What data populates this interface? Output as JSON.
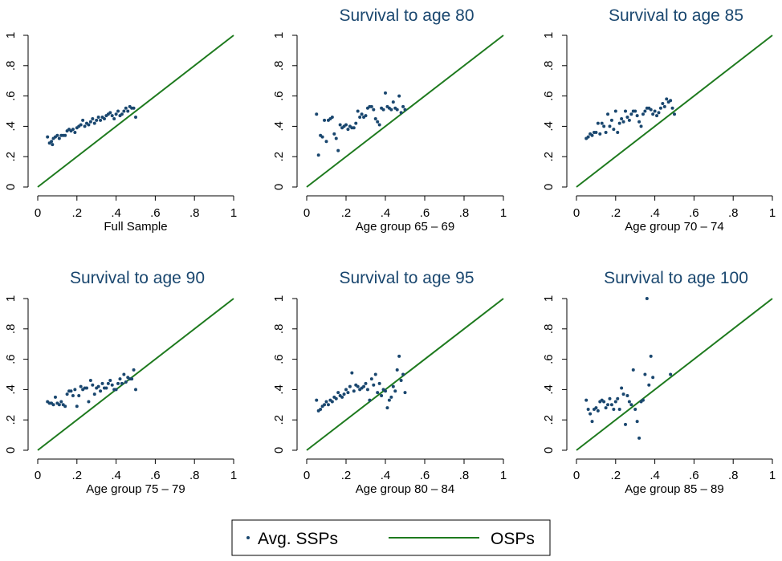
{
  "legend": {
    "scatter_label": "Avg. SSPs",
    "line_label": "OSPs"
  },
  "colors": {
    "scatter": "#1a476f",
    "line": "#1e7a1e",
    "title": "#1a476f"
  },
  "axis_ticks": [
    "0",
    ".2",
    ".4",
    ".6",
    ".8",
    "1"
  ],
  "chart_data": [
    {
      "type": "scatter",
      "title": "",
      "xlabel": "Full Sample",
      "ylabel": "",
      "xlim": [
        0,
        1
      ],
      "ylim": [
        0,
        1
      ],
      "grid": false,
      "line": {
        "x": [
          0,
          1
        ],
        "y": [
          0,
          1
        ]
      },
      "points": [
        [
          0.05,
          0.33
        ],
        [
          0.06,
          0.29
        ],
        [
          0.07,
          0.3
        ],
        [
          0.075,
          0.28
        ],
        [
          0.08,
          0.32
        ],
        [
          0.09,
          0.33
        ],
        [
          0.1,
          0.34
        ],
        [
          0.11,
          0.32
        ],
        [
          0.12,
          0.34
        ],
        [
          0.13,
          0.34
        ],
        [
          0.14,
          0.34
        ],
        [
          0.15,
          0.37
        ],
        [
          0.16,
          0.38
        ],
        [
          0.17,
          0.37
        ],
        [
          0.18,
          0.38
        ],
        [
          0.19,
          0.36
        ],
        [
          0.2,
          0.39
        ],
        [
          0.21,
          0.4
        ],
        [
          0.22,
          0.41
        ],
        [
          0.23,
          0.44
        ],
        [
          0.24,
          0.4
        ],
        [
          0.25,
          0.42
        ],
        [
          0.26,
          0.41
        ],
        [
          0.27,
          0.43
        ],
        [
          0.28,
          0.45
        ],
        [
          0.29,
          0.42
        ],
        [
          0.3,
          0.44
        ],
        [
          0.31,
          0.46
        ],
        [
          0.32,
          0.44
        ],
        [
          0.33,
          0.46
        ],
        [
          0.34,
          0.45
        ],
        [
          0.35,
          0.47
        ],
        [
          0.36,
          0.48
        ],
        [
          0.37,
          0.49
        ],
        [
          0.38,
          0.47
        ],
        [
          0.39,
          0.45
        ],
        [
          0.4,
          0.48
        ],
        [
          0.41,
          0.5
        ],
        [
          0.42,
          0.47
        ],
        [
          0.43,
          0.48
        ],
        [
          0.44,
          0.5
        ],
        [
          0.45,
          0.52
        ],
        [
          0.46,
          0.5
        ],
        [
          0.47,
          0.53
        ],
        [
          0.48,
          0.52
        ],
        [
          0.49,
          0.52
        ],
        [
          0.5,
          0.46
        ]
      ]
    },
    {
      "type": "scatter",
      "title": "Survival to age 80",
      "xlabel": "Age group 65 – 69",
      "ylabel": "",
      "xlim": [
        0,
        1
      ],
      "ylim": [
        0,
        1
      ],
      "grid": false,
      "line": {
        "x": [
          0,
          1
        ],
        "y": [
          0,
          1
        ]
      },
      "points": [
        [
          0.05,
          0.48
        ],
        [
          0.06,
          0.21
        ],
        [
          0.07,
          0.34
        ],
        [
          0.08,
          0.33
        ],
        [
          0.09,
          0.44
        ],
        [
          0.1,
          0.3
        ],
        [
          0.11,
          0.44
        ],
        [
          0.12,
          0.45
        ],
        [
          0.13,
          0.46
        ],
        [
          0.14,
          0.35
        ],
        [
          0.15,
          0.32
        ],
        [
          0.16,
          0.24
        ],
        [
          0.17,
          0.41
        ],
        [
          0.18,
          0.39
        ],
        [
          0.19,
          0.4
        ],
        [
          0.2,
          0.41
        ],
        [
          0.21,
          0.38
        ],
        [
          0.22,
          0.4
        ],
        [
          0.23,
          0.39
        ],
        [
          0.24,
          0.39
        ],
        [
          0.25,
          0.42
        ],
        [
          0.26,
          0.5
        ],
        [
          0.27,
          0.46
        ],
        [
          0.28,
          0.48
        ],
        [
          0.29,
          0.46
        ],
        [
          0.3,
          0.47
        ],
        [
          0.31,
          0.52
        ],
        [
          0.32,
          0.53
        ],
        [
          0.33,
          0.53
        ],
        [
          0.34,
          0.51
        ],
        [
          0.35,
          0.45
        ],
        [
          0.36,
          0.43
        ],
        [
          0.37,
          0.41
        ],
        [
          0.38,
          0.52
        ],
        [
          0.39,
          0.51
        ],
        [
          0.4,
          0.62
        ],
        [
          0.41,
          0.53
        ],
        [
          0.42,
          0.52
        ],
        [
          0.43,
          0.51
        ],
        [
          0.44,
          0.56
        ],
        [
          0.45,
          0.52
        ],
        [
          0.46,
          0.51
        ],
        [
          0.47,
          0.6
        ],
        [
          0.48,
          0.49
        ],
        [
          0.49,
          0.53
        ],
        [
          0.5,
          0.51
        ]
      ]
    },
    {
      "type": "scatter",
      "title": "Survival to age 85",
      "xlabel": "Age group 70 – 74",
      "ylabel": "",
      "xlim": [
        0,
        1
      ],
      "ylim": [
        0,
        1
      ],
      "grid": false,
      "line": {
        "x": [
          0,
          1
        ],
        "y": [
          0,
          1
        ]
      },
      "points": [
        [
          0.05,
          0.32
        ],
        [
          0.06,
          0.33
        ],
        [
          0.07,
          0.35
        ],
        [
          0.08,
          0.34
        ],
        [
          0.09,
          0.36
        ],
        [
          0.1,
          0.36
        ],
        [
          0.11,
          0.42
        ],
        [
          0.12,
          0.35
        ],
        [
          0.13,
          0.42
        ],
        [
          0.14,
          0.4
        ],
        [
          0.15,
          0.36
        ],
        [
          0.16,
          0.48
        ],
        [
          0.17,
          0.4
        ],
        [
          0.18,
          0.44
        ],
        [
          0.19,
          0.38
        ],
        [
          0.2,
          0.5
        ],
        [
          0.21,
          0.36
        ],
        [
          0.22,
          0.42
        ],
        [
          0.23,
          0.45
        ],
        [
          0.24,
          0.43
        ],
        [
          0.25,
          0.5
        ],
        [
          0.26,
          0.46
        ],
        [
          0.27,
          0.44
        ],
        [
          0.28,
          0.48
        ],
        [
          0.29,
          0.5
        ],
        [
          0.3,
          0.5
        ],
        [
          0.31,
          0.47
        ],
        [
          0.32,
          0.43
        ],
        [
          0.33,
          0.4
        ],
        [
          0.34,
          0.48
        ],
        [
          0.35,
          0.5
        ],
        [
          0.36,
          0.52
        ],
        [
          0.37,
          0.52
        ],
        [
          0.38,
          0.51
        ],
        [
          0.39,
          0.48
        ],
        [
          0.4,
          0.5
        ],
        [
          0.41,
          0.47
        ],
        [
          0.42,
          0.49
        ],
        [
          0.43,
          0.52
        ],
        [
          0.44,
          0.55
        ],
        [
          0.45,
          0.53
        ],
        [
          0.46,
          0.58
        ],
        [
          0.47,
          0.56
        ],
        [
          0.48,
          0.57
        ],
        [
          0.49,
          0.52
        ],
        [
          0.5,
          0.48
        ]
      ]
    },
    {
      "type": "scatter",
      "title": "Survival to age 90",
      "xlabel": "Age group 75 – 79",
      "ylabel": "",
      "xlim": [
        0,
        1
      ],
      "ylim": [
        0,
        1
      ],
      "grid": false,
      "line": {
        "x": [
          0,
          1
        ],
        "y": [
          0,
          1
        ]
      },
      "points": [
        [
          0.05,
          0.32
        ],
        [
          0.06,
          0.31
        ],
        [
          0.07,
          0.31
        ],
        [
          0.08,
          0.3
        ],
        [
          0.09,
          0.35
        ],
        [
          0.1,
          0.31
        ],
        [
          0.11,
          0.3
        ],
        [
          0.12,
          0.32
        ],
        [
          0.13,
          0.3
        ],
        [
          0.14,
          0.29
        ],
        [
          0.15,
          0.37
        ],
        [
          0.16,
          0.39
        ],
        [
          0.17,
          0.39
        ],
        [
          0.18,
          0.36
        ],
        [
          0.19,
          0.4
        ],
        [
          0.2,
          0.29
        ],
        [
          0.21,
          0.36
        ],
        [
          0.22,
          0.42
        ],
        [
          0.23,
          0.4
        ],
        [
          0.24,
          0.41
        ],
        [
          0.25,
          0.41
        ],
        [
          0.26,
          0.32
        ],
        [
          0.27,
          0.46
        ],
        [
          0.28,
          0.43
        ],
        [
          0.29,
          0.37
        ],
        [
          0.3,
          0.41
        ],
        [
          0.31,
          0.42
        ],
        [
          0.32,
          0.39
        ],
        [
          0.33,
          0.44
        ],
        [
          0.34,
          0.41
        ],
        [
          0.35,
          0.41
        ],
        [
          0.36,
          0.44
        ],
        [
          0.37,
          0.46
        ],
        [
          0.38,
          0.43
        ],
        [
          0.39,
          0.4
        ],
        [
          0.4,
          0.4
        ],
        [
          0.41,
          0.44
        ],
        [
          0.42,
          0.47
        ],
        [
          0.43,
          0.44
        ],
        [
          0.44,
          0.5
        ],
        [
          0.45,
          0.45
        ],
        [
          0.46,
          0.48
        ],
        [
          0.47,
          0.47
        ],
        [
          0.48,
          0.47
        ],
        [
          0.49,
          0.53
        ],
        [
          0.5,
          0.4
        ]
      ]
    },
    {
      "type": "scatter",
      "title": "Survival to age 95",
      "xlabel": "Age group 80 – 84",
      "ylabel": "",
      "xlim": [
        0,
        1
      ],
      "ylim": [
        0,
        1
      ],
      "grid": false,
      "line": {
        "x": [
          0,
          1
        ],
        "y": [
          0,
          1
        ]
      },
      "points": [
        [
          0.05,
          0.33
        ],
        [
          0.06,
          0.26
        ],
        [
          0.07,
          0.27
        ],
        [
          0.08,
          0.29
        ],
        [
          0.09,
          0.3
        ],
        [
          0.1,
          0.32
        ],
        [
          0.11,
          0.3
        ],
        [
          0.12,
          0.33
        ],
        [
          0.13,
          0.32
        ],
        [
          0.14,
          0.35
        ],
        [
          0.15,
          0.34
        ],
        [
          0.16,
          0.38
        ],
        [
          0.17,
          0.36
        ],
        [
          0.18,
          0.35
        ],
        [
          0.19,
          0.37
        ],
        [
          0.2,
          0.4
        ],
        [
          0.21,
          0.38
        ],
        [
          0.22,
          0.42
        ],
        [
          0.23,
          0.51
        ],
        [
          0.24,
          0.39
        ],
        [
          0.25,
          0.43
        ],
        [
          0.26,
          0.42
        ],
        [
          0.27,
          0.4
        ],
        [
          0.28,
          0.41
        ],
        [
          0.29,
          0.42
        ],
        [
          0.3,
          0.44
        ],
        [
          0.31,
          0.4
        ],
        [
          0.32,
          0.33
        ],
        [
          0.33,
          0.47
        ],
        [
          0.34,
          0.43
        ],
        [
          0.35,
          0.5
        ],
        [
          0.36,
          0.38
        ],
        [
          0.37,
          0.44
        ],
        [
          0.38,
          0.36
        ],
        [
          0.39,
          0.4
        ],
        [
          0.4,
          0.39
        ],
        [
          0.41,
          0.28
        ],
        [
          0.42,
          0.33
        ],
        [
          0.43,
          0.35
        ],
        [
          0.44,
          0.42
        ],
        [
          0.45,
          0.39
        ],
        [
          0.46,
          0.53
        ],
        [
          0.47,
          0.62
        ],
        [
          0.48,
          0.46
        ],
        [
          0.49,
          0.5
        ],
        [
          0.5,
          0.38
        ]
      ]
    },
    {
      "type": "scatter",
      "title": "Survival to age 100",
      "xlabel": "Age group 85 – 89",
      "ylabel": "",
      "xlim": [
        0,
        1
      ],
      "ylim": [
        0,
        1
      ],
      "grid": false,
      "line": {
        "x": [
          0,
          1
        ],
        "y": [
          0,
          1
        ]
      },
      "points": [
        [
          0.05,
          0.33
        ],
        [
          0.06,
          0.27
        ],
        [
          0.07,
          0.24
        ],
        [
          0.08,
          0.19
        ],
        [
          0.09,
          0.27
        ],
        [
          0.1,
          0.28
        ],
        [
          0.11,
          0.26
        ],
        [
          0.12,
          0.32
        ],
        [
          0.13,
          0.33
        ],
        [
          0.14,
          0.32
        ],
        [
          0.15,
          0.28
        ],
        [
          0.16,
          0.3
        ],
        [
          0.17,
          0.34
        ],
        [
          0.18,
          0.3
        ],
        [
          0.19,
          0.27
        ],
        [
          0.2,
          0.32
        ],
        [
          0.21,
          0.34
        ],
        [
          0.22,
          0.27
        ],
        [
          0.23,
          0.41
        ],
        [
          0.24,
          0.37
        ],
        [
          0.25,
          0.17
        ],
        [
          0.26,
          0.36
        ],
        [
          0.27,
          0.32
        ],
        [
          0.28,
          0.3
        ],
        [
          0.29,
          0.53
        ],
        [
          0.3,
          0.27
        ],
        [
          0.31,
          0.19
        ],
        [
          0.32,
          0.08
        ],
        [
          0.33,
          0.32
        ],
        [
          0.34,
          0.33
        ],
        [
          0.35,
          0.5
        ],
        [
          0.36,
          1.0
        ],
        [
          0.37,
          0.43
        ],
        [
          0.38,
          0.62
        ],
        [
          0.39,
          0.48
        ],
        [
          0.48,
          0.5
        ]
      ]
    }
  ]
}
